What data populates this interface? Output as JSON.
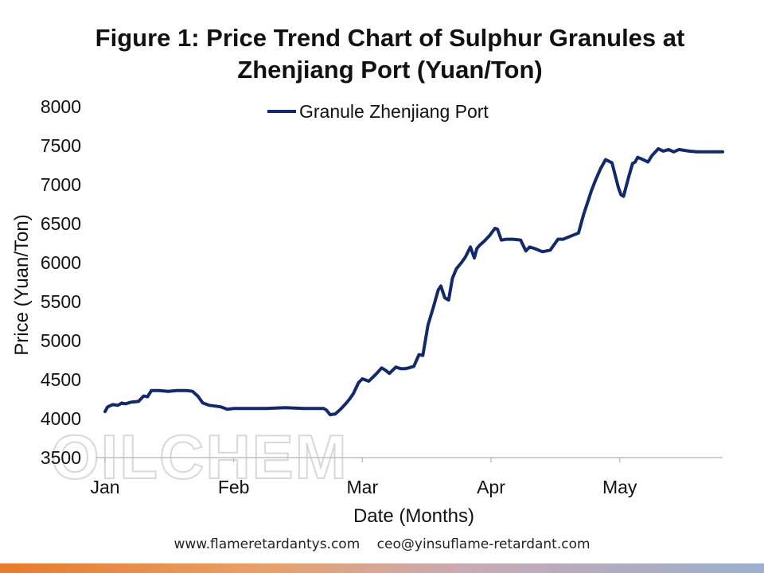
{
  "colors": {
    "line": "#12296b",
    "grid": "#d9d9d9",
    "axis": "#bfbfbf",
    "bottom_bar_start": "#e87a2c",
    "bottom_bar_end": "#9ab0cc"
  },
  "watermark": "OILCHEM",
  "footer": {
    "website": "www.flameretardantys.com",
    "email": "ceo@yinsuflame-retardant.com"
  },
  "chart_data": {
    "type": "line",
    "title": "Figure 1: Price Trend Chart of Sulphur Granules at Zhenjiang Port (Yuan/Ton)",
    "title_lines": [
      "Figure 1: Price Trend Chart of Sulphur Granules at",
      "Zhenjiang Port (Yuan/Ton)"
    ],
    "xlabel": "Date (Months)",
    "ylabel": "Price (Yuan/Ton)",
    "ylim": [
      3500,
      8000
    ],
    "yticks": [
      3500,
      4000,
      4500,
      5000,
      5500,
      6000,
      6500,
      7000,
      7500,
      8000
    ],
    "x_unit": "month",
    "xlim": [
      0,
      4.8
    ],
    "xticks": [
      {
        "label": "Jan",
        "x": 0
      },
      {
        "label": "Feb",
        "x": 1
      },
      {
        "label": "Mar",
        "x": 2
      },
      {
        "label": "Apr",
        "x": 3
      },
      {
        "label": "May",
        "x": 4
      }
    ],
    "grid": "horizontal-baseline-only",
    "legend": "top-center",
    "series": [
      {
        "name": "Granule Zhenjiang Port",
        "x": [
          0,
          0.02,
          0.06,
          0.1,
          0.13,
          0.16,
          0.2,
          0.26,
          0.3,
          0.33,
          0.36,
          0.42,
          0.49,
          0.56,
          0.63,
          0.68,
          0.72,
          0.76,
          0.81,
          0.86,
          0.9,
          0.95,
          1.0,
          1.1,
          1.25,
          1.4,
          1.55,
          1.7,
          1.72,
          1.75,
          1.79,
          1.83,
          1.87,
          1.9,
          1.93,
          1.97,
          2.0,
          2.05,
          2.1,
          2.15,
          2.18,
          2.21,
          2.26,
          2.3,
          2.33,
          2.36,
          2.4,
          2.44,
          2.47,
          2.51,
          2.55,
          2.59,
          2.61,
          2.64,
          2.67,
          2.7,
          2.73,
          2.77,
          2.8,
          2.84,
          2.87,
          2.89,
          2.91,
          2.95,
          2.99,
          3.03,
          3.05,
          3.08,
          3.12,
          3.17,
          3.23,
          3.27,
          3.3,
          3.34,
          3.4,
          3.46,
          3.52,
          3.56,
          3.62,
          3.68,
          3.72,
          3.76,
          3.78,
          3.81,
          3.85,
          3.89,
          3.94,
          3.99,
          4.01,
          4.03,
          4.07,
          4.1,
          4.12,
          4.14,
          4.17,
          4.22,
          4.25,
          4.3,
          4.34,
          4.38,
          4.42,
          4.46,
          4.5,
          4.54,
          4.6,
          4.68,
          4.74,
          4.8
        ],
        "values": [
          4090,
          4150,
          4180,
          4170,
          4200,
          4190,
          4210,
          4220,
          4290,
          4280,
          4360,
          4360,
          4350,
          4360,
          4360,
          4350,
          4290,
          4200,
          4170,
          4160,
          4150,
          4120,
          4130,
          4130,
          4130,
          4140,
          4130,
          4130,
          4110,
          4050,
          4060,
          4120,
          4190,
          4250,
          4320,
          4460,
          4510,
          4480,
          4560,
          4650,
          4620,
          4580,
          4660,
          4640,
          4640,
          4650,
          4670,
          4820,
          4810,
          5200,
          5420,
          5650,
          5700,
          5550,
          5520,
          5800,
          5920,
          6000,
          6070,
          6200,
          6060,
          6180,
          6220,
          6280,
          6350,
          6440,
          6430,
          6290,
          6300,
          6300,
          6290,
          6150,
          6200,
          6180,
          6140,
          6160,
          6300,
          6300,
          6340,
          6380,
          6620,
          6820,
          6920,
          7050,
          7200,
          7320,
          7280,
          6960,
          6870,
          6850,
          7100,
          7270,
          7290,
          7350,
          7330,
          7290,
          7370,
          7460,
          7430,
          7450,
          7420,
          7450,
          7440,
          7430,
          7420,
          7420,
          7420,
          7420
        ]
      }
    ]
  }
}
